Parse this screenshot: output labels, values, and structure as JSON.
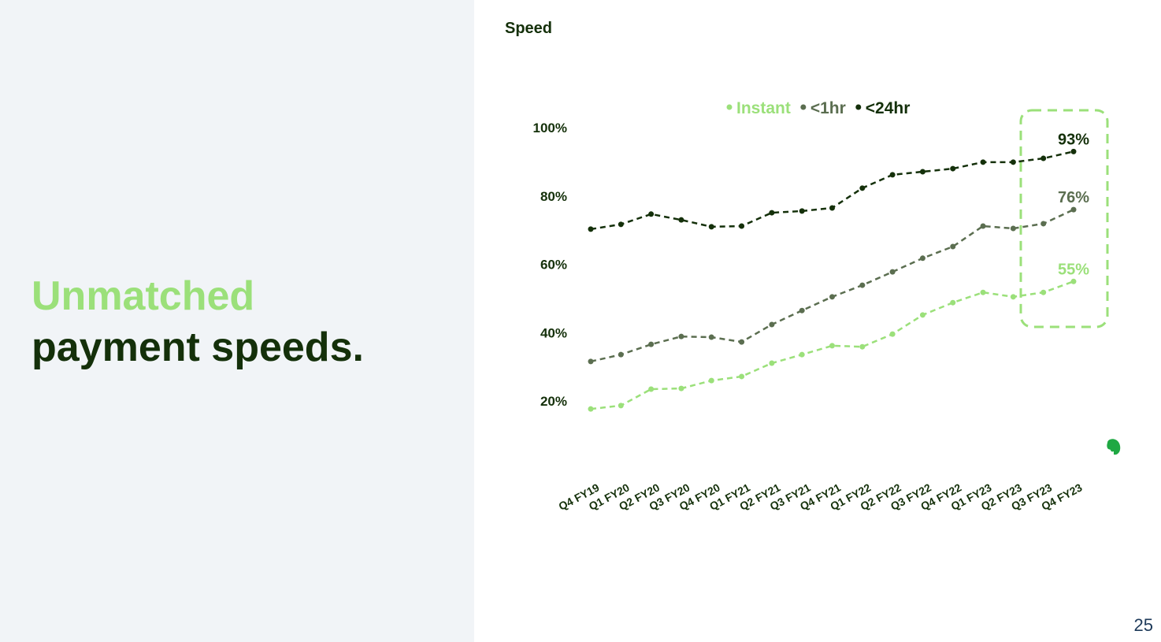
{
  "headline": {
    "line1": "Unmatched",
    "line2": "payment speeds."
  },
  "page_number": "25",
  "chart_data": {
    "type": "line",
    "title": "Speed",
    "categories": [
      "Q4 FY19",
      "Q1 FY20",
      "Q2 FY20",
      "Q3 FY20",
      "Q4 FY20",
      "Q1 FY21",
      "Q2 FY21",
      "Q3 FY21",
      "Q4 FY21",
      "Q1 FY22",
      "Q2 FY22",
      "Q3 FY22",
      "Q4 FY22",
      "Q1 FY23",
      "Q2 FY23",
      "Q3 FY23",
      "Q4 FY23"
    ],
    "series": [
      {
        "name": "Instant",
        "color": "#9be07a",
        "values": [
          17.7,
          18.7,
          23.5,
          23.7,
          26,
          27.2,
          31.1,
          33.6,
          36.2,
          35.9,
          39.6,
          45.2,
          48.8,
          51.8,
          50.5,
          51.8,
          55
        ],
        "value_labels": [
          null,
          null,
          null,
          null,
          null,
          null,
          null,
          null,
          null,
          null,
          null,
          null,
          null,
          null,
          null,
          null,
          "55%"
        ]
      },
      {
        "name": "<1hr",
        "color": "#5b6e50",
        "values": [
          31.6,
          33.6,
          36.6,
          38.9,
          38.7,
          37.3,
          42.4,
          46.5,
          50.5,
          53.9,
          57.8,
          61.8,
          65.2,
          71.2,
          70.5,
          71.9,
          76
        ],
        "value_labels": [
          null,
          null,
          null,
          null,
          null,
          null,
          null,
          null,
          null,
          null,
          null,
          null,
          null,
          null,
          null,
          null,
          "76%"
        ]
      },
      {
        "name": "<24hr",
        "color": "#14300a",
        "values": [
          70.3,
          71.7,
          74.7,
          73,
          71,
          71.2,
          75.1,
          75.6,
          76.5,
          82.3,
          86.2,
          87.1,
          88,
          89.9,
          89.9,
          91,
          93
        ],
        "value_labels": [
          null,
          null,
          null,
          null,
          null,
          null,
          null,
          null,
          null,
          null,
          null,
          null,
          null,
          null,
          null,
          null,
          "93%"
        ]
      }
    ],
    "ylim": [
      0,
      100
    ],
    "yticks": [
      {
        "value": 20,
        "label": "20%"
      },
      {
        "value": 40,
        "label": "40%"
      },
      {
        "value": 60,
        "label": "60%"
      },
      {
        "value": 80,
        "label": "80%"
      },
      {
        "value": 100,
        "label": "100%"
      }
    ],
    "grid": false,
    "legend": "top"
  }
}
